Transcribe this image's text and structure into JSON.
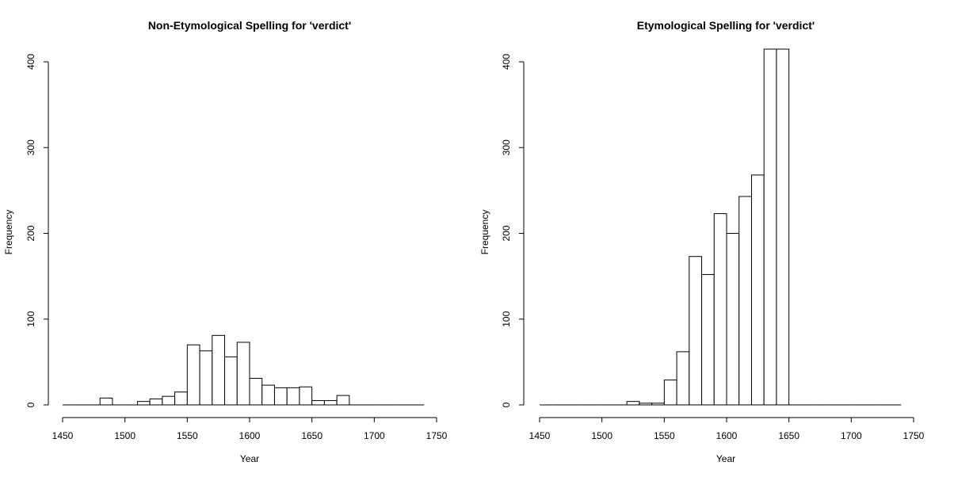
{
  "chart_data": [
    {
      "type": "bar",
      "title": "Non-Etymological Spelling for 'verdict'",
      "xlabel": "Year",
      "ylabel": "Frequency",
      "xlim": [
        1450,
        1750
      ],
      "ylim": [
        0,
        400
      ],
      "x_ticks": [
        1450,
        1500,
        1550,
        1600,
        1650,
        1700,
        1750
      ],
      "y_ticks": [
        0,
        100,
        200,
        300,
        400
      ],
      "bin_width": 10,
      "bins": [
        1460,
        1470,
        1480,
        1490,
        1500,
        1510,
        1520,
        1530,
        1540,
        1550,
        1560,
        1570,
        1580,
        1590,
        1600,
        1610,
        1620,
        1630,
        1640,
        1650,
        1660,
        1670,
        1680,
        1690,
        1700,
        1710,
        1720,
        1730,
        1740
      ],
      "values": [
        0,
        0,
        0,
        8,
        0,
        0,
        4,
        7,
        10,
        15,
        70,
        63,
        81,
        56,
        73,
        31,
        23,
        20,
        20,
        21,
        5,
        5,
        11,
        0,
        0,
        0,
        0,
        0,
        0
      ],
      "grid": false,
      "legend": "none"
    },
    {
      "type": "bar",
      "title": "Etymological Spelling for 'verdict'",
      "xlabel": "Year",
      "ylabel": "Frequency",
      "xlim": [
        1450,
        1750
      ],
      "ylim": [
        0,
        400
      ],
      "x_ticks": [
        1450,
        1500,
        1550,
        1600,
        1650,
        1700,
        1750
      ],
      "y_ticks": [
        0,
        100,
        200,
        300,
        400
      ],
      "bin_width": 10,
      "bins": [
        1460,
        1470,
        1480,
        1490,
        1500,
        1510,
        1520,
        1530,
        1540,
        1550,
        1560,
        1570,
        1580,
        1590,
        1600,
        1610,
        1620,
        1630,
        1640,
        1650,
        1660,
        1670,
        1680,
        1690,
        1700,
        1710,
        1720,
        1730,
        1740
      ],
      "values": [
        0,
        0,
        0,
        0,
        0,
        0,
        0,
        4,
        2,
        2,
        29,
        62,
        173,
        152,
        223,
        200,
        243,
        268,
        450,
        450,
        0,
        0,
        0,
        0,
        0,
        0,
        0,
        0,
        0
      ],
      "grid": false,
      "legend": "none"
    }
  ]
}
